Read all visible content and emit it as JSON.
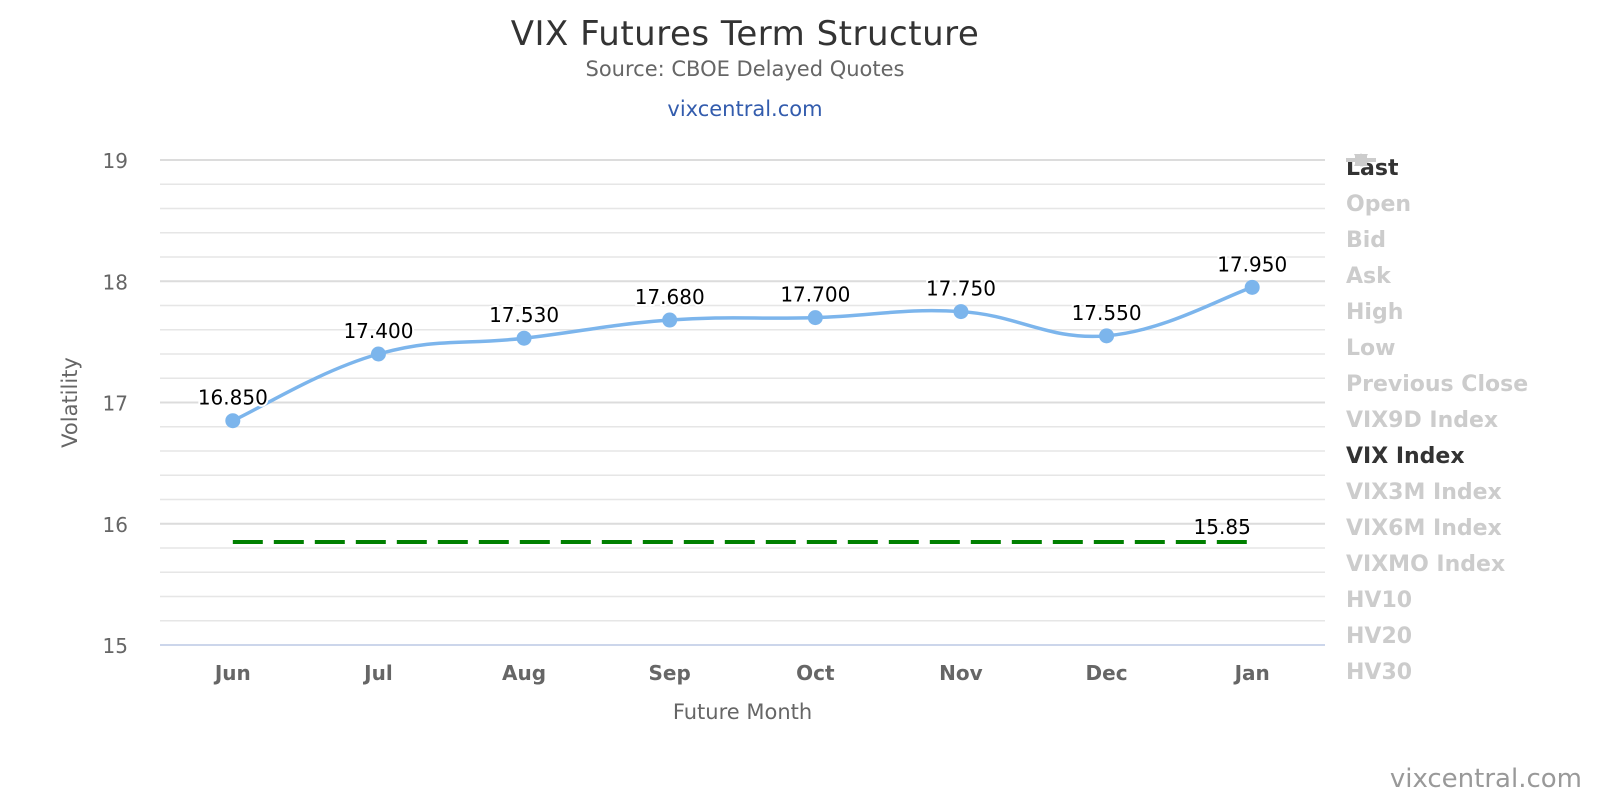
{
  "header": {
    "title": "VIX Futures Term Structure",
    "subtitle": "Source: CBOE Delayed Quotes",
    "link": "vixcentral.com"
  },
  "credit": "vixcentral.com",
  "colors": {
    "last": "#7cb5ec",
    "vix": "#008000",
    "grid": "#e6e6e6",
    "inactive": "#cccccc"
  },
  "chart_data": {
    "type": "line",
    "title": "VIX Futures Term Structure",
    "subtitle": "Source: CBOE Delayed Quotes",
    "xlabel": "Future Month",
    "ylabel": "Volatility",
    "categories": [
      "Jun",
      "Jul",
      "Aug",
      "Sep",
      "Oct",
      "Nov",
      "Dec",
      "Jan"
    ],
    "ylim": [
      15,
      19
    ],
    "yticks": [
      15,
      16,
      17,
      18,
      19
    ],
    "grid": true,
    "legend_position": "right",
    "series": [
      {
        "name": "Last",
        "values": [
          16.85,
          17.4,
          17.53,
          17.68,
          17.7,
          17.75,
          17.55,
          17.95
        ],
        "labels": [
          "16.850",
          "17.400",
          "17.530",
          "17.680",
          "17.700",
          "17.750",
          "17.550",
          "17.950"
        ],
        "style": "spline-markers",
        "color": "#7cb5ec"
      },
      {
        "name": "VIX Index",
        "value": 15.85,
        "label": "15.85",
        "style": "dashed",
        "color": "#008000"
      }
    ]
  },
  "legend": [
    {
      "label": "Last",
      "icon": "circle-line",
      "active": true,
      "color": "#7cb5ec"
    },
    {
      "label": "Open",
      "icon": "diamond-line",
      "active": false
    },
    {
      "label": "Bid",
      "icon": "square-line",
      "active": false
    },
    {
      "label": "Ask",
      "icon": "triangle-line",
      "active": false
    },
    {
      "label": "High",
      "icon": "triangle-down-line",
      "active": false
    },
    {
      "label": "Low",
      "icon": "circle-line",
      "active": false
    },
    {
      "label": "Previous Close",
      "icon": "diamond-line",
      "active": false
    },
    {
      "label": "VIX9D Index",
      "icon": "solid-line",
      "active": false
    },
    {
      "label": "VIX Index",
      "icon": "solid-line",
      "active": true,
      "color": "#008000"
    },
    {
      "label": "VIX3M Index",
      "icon": "solid-line",
      "active": false
    },
    {
      "label": "VIX6M Index",
      "icon": "dotted-line",
      "active": false
    },
    {
      "label": "VIXMO Index",
      "icon": "dash-dot-line",
      "active": false
    },
    {
      "label": "HV10",
      "icon": "dash-dot-line",
      "active": false
    },
    {
      "label": "HV20",
      "icon": "dash-dot-line",
      "active": false
    },
    {
      "label": "HV30",
      "icon": "dash-dot-line",
      "active": false
    }
  ]
}
